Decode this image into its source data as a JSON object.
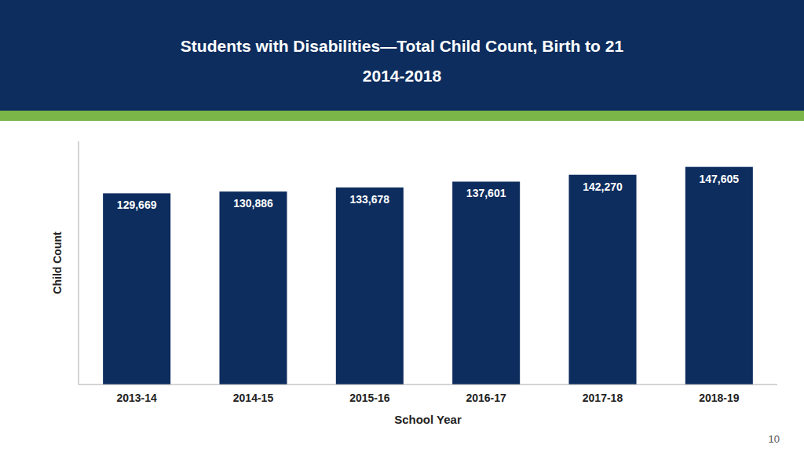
{
  "chart_data": {
    "type": "bar",
    "title": "Students with Disabilities—Total Child Count, Birth to 21",
    "subtitle": "2014-2018",
    "categories": [
      "2013-14",
      "2014-15",
      "2015-16",
      "2016-17",
      "2017-18",
      "2018-19"
    ],
    "values": [
      129669,
      130886,
      133678,
      137601,
      142270,
      147605
    ],
    "value_labels": [
      "129,669",
      "130,886",
      "133,678",
      "137,601",
      "142,270",
      "147,605"
    ],
    "color": "#0d2d5e",
    "xlabel": "School Year",
    "ylabel": "Child Count",
    "ylim": [
      0,
      165000
    ],
    "grid": false,
    "data_labels": true,
    "tick_labels": "x",
    "annotations": [
      "10"
    ]
  }
}
